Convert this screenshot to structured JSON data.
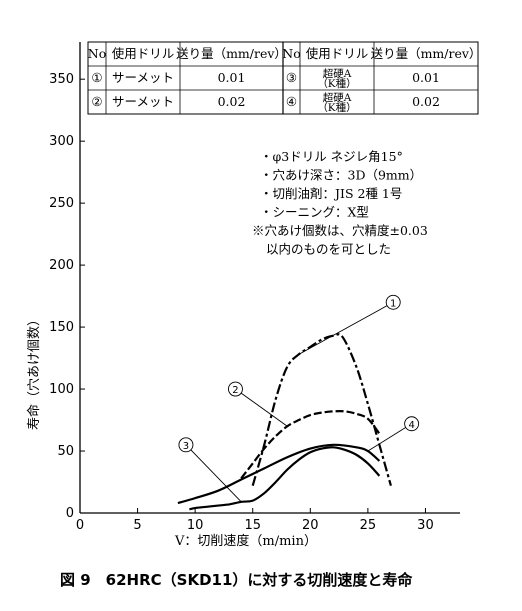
{
  "chart_data": {
    "type": "line",
    "title": "",
    "xlabel": "V：切削速度（m/min）",
    "ylabel": "寿命（穴あけ個数）",
    "xlim": [
      0,
      33
    ],
    "ylim": [
      0,
      380
    ],
    "xticks": [
      0,
      5,
      10,
      15,
      20,
      25,
      30
    ],
    "yticks": [
      0,
      50,
      100,
      150,
      200,
      250,
      300,
      350
    ],
    "grid": false,
    "series": [
      {
        "name": "①",
        "marker_label": "①",
        "label_at": [
          27.2,
          170
        ],
        "x": [
          15,
          16,
          17,
          18,
          19,
          20,
          21,
          22,
          22.8,
          24,
          25,
          26,
          27
        ],
        "y": [
          22,
          55,
          92,
          118,
          128,
          134,
          140,
          143,
          142,
          118,
          88,
          55,
          22
        ]
      },
      {
        "name": "②",
        "marker_label": "②",
        "label_at": [
          13.5,
          100
        ],
        "x": [
          14,
          15,
          16,
          17,
          18,
          19,
          20,
          21,
          22,
          23,
          24,
          25,
          26
        ],
        "y": [
          28,
          40,
          52,
          62,
          70,
          75,
          79,
          81,
          82,
          82,
          80,
          76,
          64
        ]
      },
      {
        "name": "③",
        "marker_label": "③",
        "label_at": [
          9.2,
          55
        ],
        "x": [
          9.5,
          10,
          11,
          12,
          13,
          14,
          15,
          16,
          17,
          18,
          19,
          20,
          21,
          22,
          23,
          24,
          25,
          26
        ],
        "y": [
          3,
          4,
          5,
          6,
          7,
          9,
          10,
          16,
          25,
          35,
          43,
          49,
          52,
          53,
          51,
          47,
          40,
          30
        ]
      },
      {
        "name": "④",
        "marker_label": "④",
        "label_at": [
          28.8,
          72
        ],
        "x": [
          8.5,
          10,
          12,
          14,
          16,
          18,
          20,
          22,
          24,
          25,
          26
        ],
        "y": [
          8,
          12,
          18,
          27,
          36,
          45,
          52,
          55,
          53,
          50,
          42
        ]
      }
    ],
    "legend_table": {
      "headers": [
        "No",
        "使用ドリル",
        "送り量（mm/rev）",
        "No",
        "使用ドリル",
        "送り量（mm/rev）"
      ],
      "rows": [
        [
          "①",
          "サーメット",
          "0.01",
          "③",
          "超硬A（K種）",
          "0.01"
        ],
        [
          "②",
          "サーメット",
          "0.02",
          "④",
          "超硬A（K種）",
          "0.02"
        ]
      ]
    },
    "notes": [
      "・φ3ドリル ネジレ角15°",
      "・穴あけ深さ：3D（9mm）",
      "・切削油剤：JIS 2種 1号",
      "・シーニング：X型",
      "※穴あけ個数は、穴精度±0.03",
      "以内のものを可とした"
    ],
    "figure_caption": "図 9　62HRC（SKD11）に対する切削速度と寿命"
  }
}
